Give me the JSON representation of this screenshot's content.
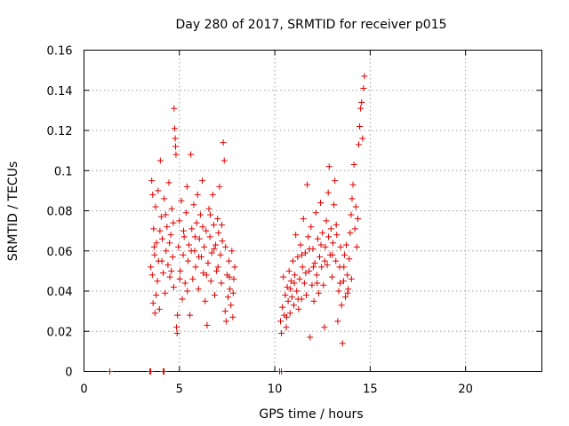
{
  "chart_data": {
    "type": "scatter",
    "title": "Day 280 of 2017, SRMTID for receiver p015",
    "xlabel": "GPS time / hours",
    "ylabel": "SRMTID / TECUs",
    "xlim": [
      0,
      24
    ],
    "ylim": [
      0,
      0.16
    ],
    "xticks": [
      0,
      5,
      10,
      15,
      20
    ],
    "yticks": [
      0,
      0.02,
      0.04,
      0.06,
      0.08,
      0.1,
      0.12,
      0.14,
      0.16
    ],
    "xtick_labels": [
      "0",
      "5",
      "10",
      "15",
      "20"
    ],
    "ytick_labels": [
      "0",
      "0.02",
      "0.04",
      "0.06",
      "0.08",
      "0.1",
      "0.12",
      "0.14",
      "0.16"
    ],
    "grid": true,
    "marker": "+",
    "color": "#dd0000",
    "series": [
      {
        "name": "SRMTID",
        "points": [
          [
            1.35,
            0.0
          ],
          [
            3.45,
            0.0
          ],
          [
            3.5,
            0.0
          ],
          [
            4.15,
            0.0
          ],
          [
            4.2,
            0.0
          ],
          [
            10.25,
            0.0
          ],
          [
            10.35,
            0.0
          ],
          [
            3.5,
            0.052
          ],
          [
            3.55,
            0.095
          ],
          [
            3.6,
            0.088
          ],
          [
            3.62,
            0.034
          ],
          [
            3.65,
            0.071
          ],
          [
            3.7,
            0.058
          ],
          [
            3.72,
            0.029
          ],
          [
            3.75,
            0.082
          ],
          [
            3.8,
            0.064
          ],
          [
            3.85,
            0.045
          ],
          [
            3.88,
            0.09
          ],
          [
            3.9,
            0.055
          ],
          [
            3.95,
            0.031
          ],
          [
            4.0,
            0.105
          ],
          [
            4.05,
            0.077
          ],
          [
            4.1,
            0.066
          ],
          [
            4.15,
            0.049
          ],
          [
            4.2,
            0.086
          ],
          [
            4.25,
            0.039
          ],
          [
            4.3,
            0.06
          ],
          [
            4.35,
            0.072
          ],
          [
            4.4,
            0.053
          ],
          [
            4.45,
            0.094
          ],
          [
            4.5,
            0.047
          ],
          [
            4.55,
            0.068
          ],
          [
            4.6,
            0.081
          ],
          [
            4.65,
            0.057
          ],
          [
            4.7,
            0.042
          ],
          [
            4.72,
            0.131
          ],
          [
            4.75,
            0.121
          ],
          [
            4.78,
            0.116
          ],
          [
            4.8,
            0.112
          ],
          [
            4.82,
            0.108
          ],
          [
            4.85,
            0.022
          ],
          [
            4.88,
            0.019
          ],
          [
            4.9,
            0.028
          ],
          [
            4.95,
            0.062
          ],
          [
            5.0,
            0.075
          ],
          [
            5.05,
            0.05
          ],
          [
            5.1,
            0.085
          ],
          [
            5.15,
            0.036
          ],
          [
            5.2,
            0.058
          ],
          [
            5.25,
            0.067
          ],
          [
            5.3,
            0.044
          ],
          [
            5.35,
            0.079
          ],
          [
            5.4,
            0.092
          ],
          [
            5.45,
            0.055
          ],
          [
            5.5,
            0.063
          ],
          [
            5.55,
            0.028
          ],
          [
            5.6,
            0.108
          ],
          [
            5.65,
            0.071
          ],
          [
            5.7,
            0.046
          ],
          [
            5.75,
            0.083
          ],
          [
            5.8,
            0.06
          ],
          [
            5.85,
            0.052
          ],
          [
            5.9,
            0.074
          ],
          [
            5.95,
            0.088
          ],
          [
            6.0,
            0.041
          ],
          [
            6.05,
            0.066
          ],
          [
            6.1,
            0.078
          ],
          [
            6.15,
            0.057
          ],
          [
            6.2,
            0.095
          ],
          [
            6.25,
            0.049
          ],
          [
            6.3,
            0.062
          ],
          [
            6.35,
            0.035
          ],
          [
            6.4,
            0.07
          ],
          [
            6.45,
            0.023
          ],
          [
            6.5,
            0.054
          ],
          [
            6.55,
            0.081
          ],
          [
            6.6,
            0.067
          ],
          [
            6.65,
            0.045
          ],
          [
            6.7,
            0.059
          ],
          [
            6.75,
            0.088
          ],
          [
            6.8,
            0.073
          ],
          [
            6.85,
            0.038
          ],
          [
            6.9,
            0.063
          ],
          [
            6.95,
            0.05
          ],
          [
            7.0,
            0.076
          ],
          [
            7.05,
            0.069
          ],
          [
            7.1,
            0.092
          ],
          [
            7.15,
            0.058
          ],
          [
            7.2,
            0.044
          ],
          [
            7.25,
            0.065
          ],
          [
            7.3,
            0.114
          ],
          [
            7.35,
            0.105
          ],
          [
            7.4,
            0.03
          ],
          [
            7.45,
            0.025
          ],
          [
            7.5,
            0.048
          ],
          [
            7.55,
            0.037
          ],
          [
            7.6,
            0.055
          ],
          [
            7.65,
            0.041
          ],
          [
            7.7,
            0.033
          ],
          [
            7.75,
            0.06
          ],
          [
            7.8,
            0.027
          ],
          [
            7.85,
            0.046
          ],
          [
            7.9,
            0.052
          ],
          [
            3.58,
            0.048
          ],
          [
            3.68,
            0.062
          ],
          [
            3.78,
            0.038
          ],
          [
            3.98,
            0.07
          ],
          [
            4.08,
            0.055
          ],
          [
            4.28,
            0.078
          ],
          [
            4.48,
            0.064
          ],
          [
            4.58,
            0.05
          ],
          [
            4.68,
            0.074
          ],
          [
            5.02,
            0.046
          ],
          [
            5.22,
            0.07
          ],
          [
            5.42,
            0.04
          ],
          [
            5.62,
            0.06
          ],
          [
            5.82,
            0.067
          ],
          [
            6.02,
            0.057
          ],
          [
            6.22,
            0.072
          ],
          [
            6.42,
            0.048
          ],
          [
            6.62,
            0.078
          ],
          [
            6.82,
            0.061
          ],
          [
            7.02,
            0.052
          ],
          [
            7.22,
            0.073
          ],
          [
            7.42,
            0.062
          ],
          [
            7.62,
            0.047
          ],
          [
            7.82,
            0.039
          ],
          [
            10.3,
            0.025
          ],
          [
            10.35,
            0.019
          ],
          [
            10.4,
            0.032
          ],
          [
            10.45,
            0.047
          ],
          [
            10.5,
            0.028
          ],
          [
            10.55,
            0.038
          ],
          [
            10.6,
            0.022
          ],
          [
            10.65,
            0.042
          ],
          [
            10.7,
            0.035
          ],
          [
            10.75,
            0.05
          ],
          [
            10.8,
            0.029
          ],
          [
            10.85,
            0.045
          ],
          [
            10.9,
            0.037
          ],
          [
            10.95,
            0.055
          ],
          [
            11.0,
            0.033
          ],
          [
            11.05,
            0.048
          ],
          [
            11.1,
            0.068
          ],
          [
            11.15,
            0.04
          ],
          [
            11.2,
            0.057
          ],
          [
            11.25,
            0.031
          ],
          [
            11.3,
            0.046
          ],
          [
            11.35,
            0.063
          ],
          [
            11.4,
            0.036
          ],
          [
            11.45,
            0.052
          ],
          [
            11.5,
            0.076
          ],
          [
            11.55,
            0.044
          ],
          [
            11.6,
            0.059
          ],
          [
            11.65,
            0.038
          ],
          [
            11.7,
            0.093
          ],
          [
            11.75,
            0.067
          ],
          [
            11.8,
            0.05
          ],
          [
            11.85,
            0.017
          ],
          [
            11.9,
            0.072
          ],
          [
            11.95,
            0.043
          ],
          [
            12.0,
            0.061
          ],
          [
            12.05,
            0.035
          ],
          [
            12.1,
            0.054
          ],
          [
            12.15,
            0.079
          ],
          [
            12.2,
            0.048
          ],
          [
            12.25,
            0.066
          ],
          [
            12.3,
            0.039
          ],
          [
            12.35,
            0.057
          ],
          [
            12.4,
            0.084
          ],
          [
            12.45,
            0.052
          ],
          [
            12.5,
            0.069
          ],
          [
            12.55,
            0.043
          ],
          [
            12.6,
            0.022
          ],
          [
            12.65,
            0.062
          ],
          [
            12.7,
            0.075
          ],
          [
            12.75,
            0.053
          ],
          [
            12.8,
            0.089
          ],
          [
            12.85,
            0.102
          ],
          [
            12.9,
            0.058
          ],
          [
            12.95,
            0.071
          ],
          [
            13.0,
            0.047
          ],
          [
            13.05,
            0.064
          ],
          [
            13.1,
            0.083
          ],
          [
            13.15,
            0.095
          ],
          [
            13.2,
            0.055
          ],
          [
            13.25,
            0.068
          ],
          [
            13.3,
            0.025
          ],
          [
            13.35,
            0.04
          ],
          [
            13.4,
            0.052
          ],
          [
            13.45,
            0.062
          ],
          [
            13.5,
            0.033
          ],
          [
            13.55,
            0.014
          ],
          [
            13.6,
            0.045
          ],
          [
            13.65,
            0.058
          ],
          [
            13.7,
            0.037
          ],
          [
            13.75,
            0.063
          ],
          [
            13.8,
            0.048
          ],
          [
            13.85,
            0.041
          ],
          [
            13.9,
            0.056
          ],
          [
            13.95,
            0.069
          ],
          [
            14.0,
            0.078
          ],
          [
            14.05,
            0.086
          ],
          [
            14.1,
            0.093
          ],
          [
            14.15,
            0.103
          ],
          [
            14.2,
            0.071
          ],
          [
            14.25,
            0.082
          ],
          [
            14.3,
            0.062
          ],
          [
            14.35,
            0.076
          ],
          [
            14.4,
            0.113
          ],
          [
            14.45,
            0.122
          ],
          [
            14.5,
            0.131
          ],
          [
            14.55,
            0.134
          ],
          [
            14.6,
            0.116
          ],
          [
            14.65,
            0.141
          ],
          [
            14.7,
            0.147
          ],
          [
            10.62,
            0.027
          ],
          [
            10.82,
            0.041
          ],
          [
            11.02,
            0.044
          ],
          [
            11.22,
            0.036
          ],
          [
            11.42,
            0.058
          ],
          [
            11.62,
            0.049
          ],
          [
            11.82,
            0.061
          ],
          [
            12.02,
            0.052
          ],
          [
            12.22,
            0.044
          ],
          [
            12.42,
            0.063
          ],
          [
            12.62,
            0.055
          ],
          [
            12.82,
            0.067
          ],
          [
            13.02,
            0.058
          ],
          [
            13.22,
            0.073
          ],
          [
            13.42,
            0.044
          ],
          [
            13.62,
            0.052
          ],
          [
            13.82,
            0.039
          ],
          [
            14.02,
            0.046
          ]
        ]
      }
    ]
  }
}
